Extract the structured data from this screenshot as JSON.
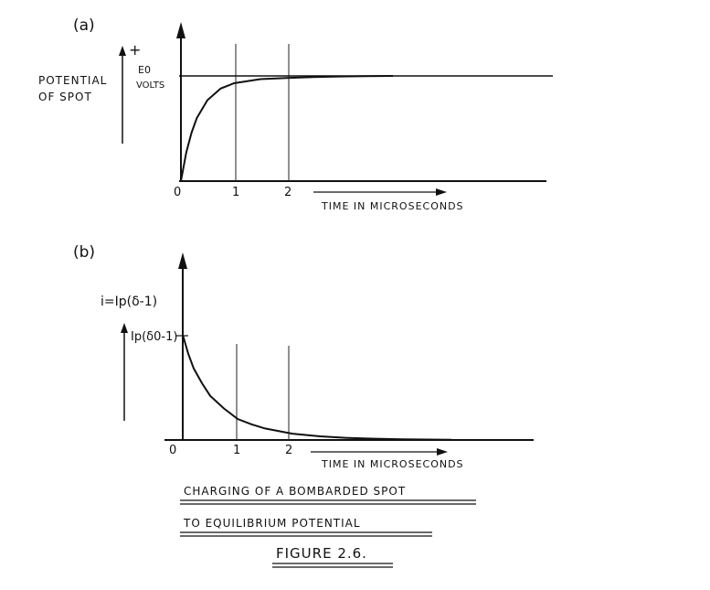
{
  "chart_data": [
    {
      "type": "line",
      "panel_label": "(a)",
      "ylabel_lines": [
        "POTENTIAL",
        "OF SPOT"
      ],
      "y_axis_sign": "+",
      "asymptote_label_lines": [
        "E0",
        "VOLTS"
      ],
      "xlabel": "TIME IN MICROSECONDS",
      "x_ticks": [
        "0",
        "1",
        "2"
      ],
      "x": [
        0,
        0.1,
        0.2,
        0.3,
        0.5,
        0.75,
        1.0,
        1.25,
        1.5,
        2.0,
        2.5,
        3.0,
        3.5,
        4.0
      ],
      "y": [
        0,
        0.27,
        0.46,
        0.6,
        0.77,
        0.88,
        0.93,
        0.95,
        0.97,
        0.98,
        0.99,
        0.995,
        0.998,
        1.0
      ],
      "asymptote": 1.0,
      "xlim": [
        0,
        6.9
      ],
      "ylim": [
        0,
        1.6
      ]
    },
    {
      "type": "line",
      "panel_label": "(b)",
      "ylabel": "i=Ip(δ-1)",
      "y_start_label": "Ip(δ0-1)",
      "xlabel": "TIME IN MICROSECONDS",
      "x_ticks": [
        "0",
        "1",
        "2"
      ],
      "x": [
        0,
        0.1,
        0.2,
        0.35,
        0.5,
        0.75,
        1.0,
        1.25,
        1.5,
        2.0,
        2.5,
        3.0,
        3.5,
        4.0,
        4.9
      ],
      "y": [
        1.0,
        0.82,
        0.68,
        0.54,
        0.42,
        0.3,
        0.2,
        0.15,
        0.11,
        0.06,
        0.035,
        0.02,
        0.012,
        0.006,
        0.002
      ],
      "xlim": [
        0,
        6.4
      ],
      "ylim": [
        0,
        1.6
      ]
    }
  ],
  "caption": {
    "line1": "CHARGING OF A BOMBARDED SPOT",
    "line2": "TO EQUILIBRIUM POTENTIAL",
    "figure_label": "FIGURE 2.6."
  }
}
